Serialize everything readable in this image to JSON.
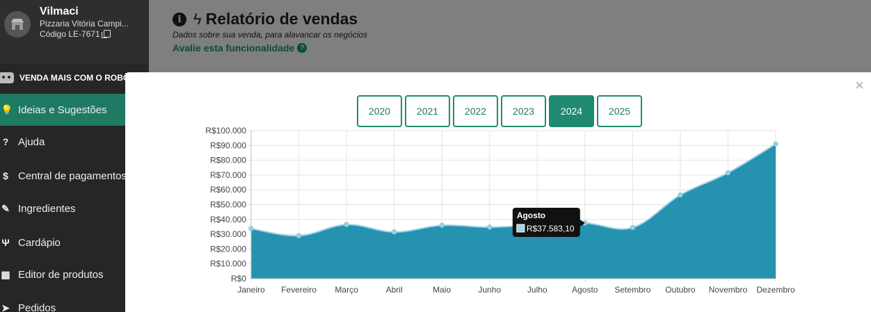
{
  "sidebar": {
    "store_name": "Vilmaci",
    "store_sub": "Pizzaria Vitória Campi...",
    "store_code": "Código LE-7671",
    "promo": "VENDA MAIS COM O ROBÔ",
    "items": [
      {
        "label": "Ideias e Sugestões",
        "icon": "lightbulb-icon"
      },
      {
        "label": "Ajuda",
        "icon": "question-circle-icon"
      },
      {
        "label": "Central de pagamentos",
        "icon": "dollar-icon"
      },
      {
        "label": "Ingredientes",
        "icon": "pepper-icon"
      },
      {
        "label": "Cardápio",
        "icon": "utensils-icon"
      },
      {
        "label": "Editor de produtos",
        "icon": "box-icon"
      },
      {
        "label": "Pedidos",
        "icon": "send-icon"
      }
    ]
  },
  "page": {
    "title": "Relatório de vendas",
    "subtitle": "Dados sobre sua venda, para alavancar os negócios",
    "rate_link": "Avalie esta funcionalidade"
  },
  "modal": {
    "close": "×",
    "years": [
      "2020",
      "2021",
      "2022",
      "2023",
      "2024",
      "2025"
    ],
    "active_year": "2024"
  },
  "tooltip": {
    "title": "Agosto",
    "value": "R$37.583,10"
  },
  "chart_data": {
    "type": "area",
    "categories": [
      "Janeiro",
      "Fevereiro",
      "Março",
      "Abril",
      "Maio",
      "Junho",
      "Julho",
      "Agosto",
      "Setembro",
      "Outubro",
      "Novembro",
      "Dezembro"
    ],
    "values": [
      33800,
      29000,
      36500,
      31500,
      36000,
      34800,
      36300,
      37583.1,
      34500,
      56500,
      71500,
      91000
    ],
    "ylim": [
      0,
      100000
    ],
    "y_ticks": [
      "R$0",
      "R$10.000",
      "R$20.000",
      "R$30.000",
      "R$40.000",
      "R$50.000",
      "R$60.000",
      "R$70.000",
      "R$80.000",
      "R$90.000",
      "R$100.000"
    ],
    "fill_color": "#2593b0",
    "line_color": "#9ed3e6",
    "grid": true
  }
}
